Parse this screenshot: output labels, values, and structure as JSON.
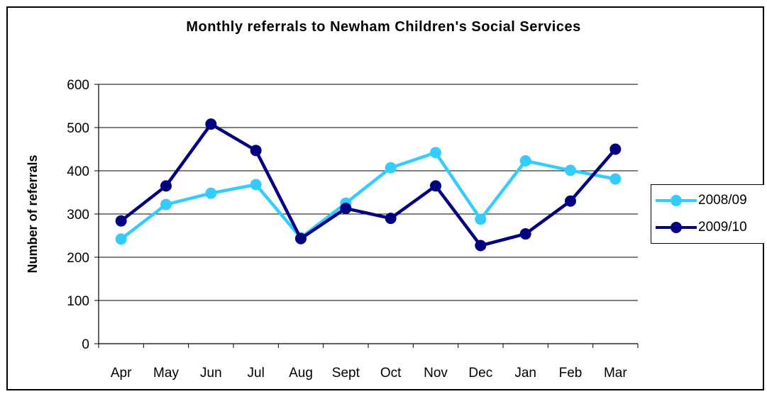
{
  "chart_data": {
    "type": "line",
    "title": "Monthly referrals to Newham Children's Social Services",
    "xlabel": "",
    "ylabel": "Number of referrals",
    "categories": [
      "Apr",
      "May",
      "Jun",
      "Jul",
      "Aug",
      "Sept",
      "Oct",
      "Nov",
      "Dec",
      "Jan",
      "Feb",
      "Mar"
    ],
    "ylim": [
      0,
      600
    ],
    "yticks": [
      0,
      100,
      200,
      300,
      400,
      500,
      600
    ],
    "grid": true,
    "legend_position": "right",
    "series": [
      {
        "name": "2008/09",
        "color": "#33CCFF",
        "values": [
          242,
          322,
          348,
          368,
          245,
          325,
          407,
          442,
          288,
          423,
          401,
          381
        ]
      },
      {
        "name": "2009/10",
        "color": "#000080",
        "values": [
          284,
          365,
          508,
          447,
          243,
          313,
          290,
          365,
          227,
          254,
          330,
          450
        ]
      }
    ]
  }
}
